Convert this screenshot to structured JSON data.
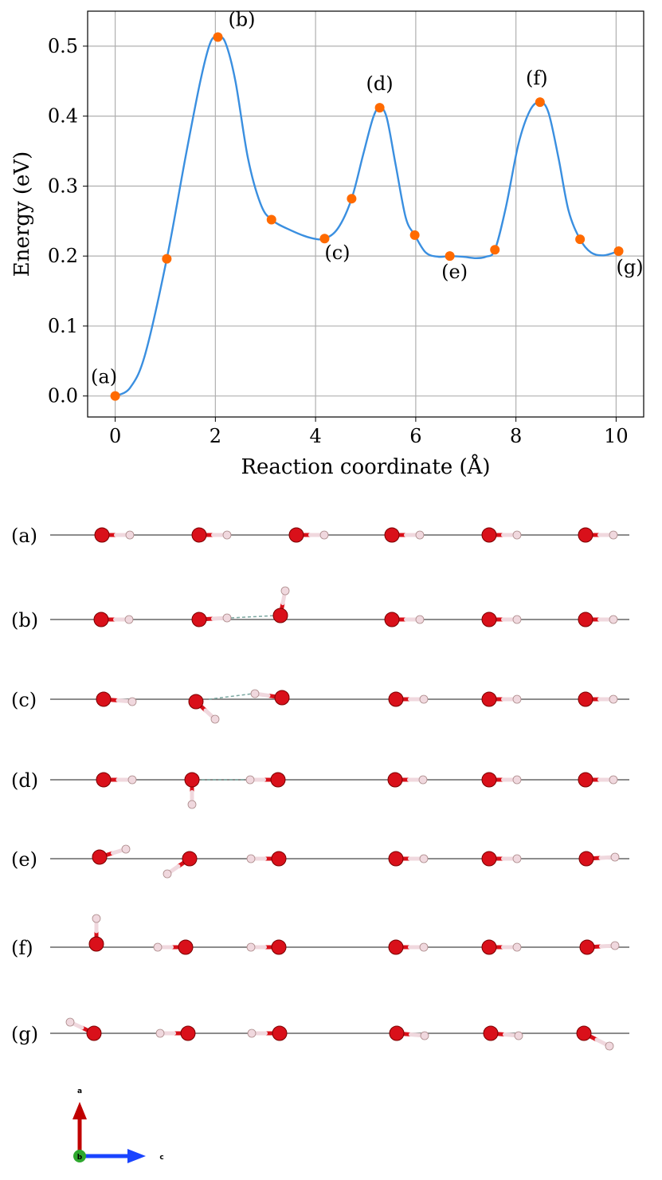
{
  "chart_data": {
    "type": "line",
    "xlabel": "Reaction coordinate (Å)",
    "ylabel": "Energy (eV)",
    "xlim": [
      -0.55,
      10.55
    ],
    "ylim": [
      -0.03,
      0.55
    ],
    "xticks": [
      0,
      2,
      4,
      6,
      8,
      10
    ],
    "yticks": [
      0.0,
      0.1,
      0.2,
      0.3,
      0.4,
      0.5
    ],
    "xtick_labels": [
      "0",
      "2",
      "4",
      "6",
      "8",
      "10"
    ],
    "ytick_labels": [
      "0.0",
      "0.1",
      "0.2",
      "0.3",
      "0.4",
      "0.5"
    ],
    "grid": true,
    "line_color": "#3a8fe0",
    "point_color": "#ff6a00",
    "points": [
      {
        "x": 0.0,
        "y": 0.0
      },
      {
        "x": 1.03,
        "y": 0.196
      },
      {
        "x": 2.05,
        "y": 0.513
      },
      {
        "x": 3.12,
        "y": 0.252
      },
      {
        "x": 4.18,
        "y": 0.225
      },
      {
        "x": 4.72,
        "y": 0.282
      },
      {
        "x": 5.28,
        "y": 0.412
      },
      {
        "x": 5.98,
        "y": 0.23
      },
      {
        "x": 6.68,
        "y": 0.2
      },
      {
        "x": 7.58,
        "y": 0.209
      },
      {
        "x": 8.48,
        "y": 0.42
      },
      {
        "x": 9.28,
        "y": 0.224
      },
      {
        "x": 10.05,
        "y": 0.207
      }
    ],
    "curve": [
      [
        0.0,
        0.0
      ],
      [
        0.3,
        0.012
      ],
      [
        0.6,
        0.06
      ],
      [
        1.03,
        0.196
      ],
      [
        1.4,
        0.34
      ],
      [
        1.7,
        0.45
      ],
      [
        1.9,
        0.505
      ],
      [
        2.05,
        0.513
      ],
      [
        2.2,
        0.505
      ],
      [
        2.4,
        0.45
      ],
      [
        2.65,
        0.34
      ],
      [
        2.9,
        0.275
      ],
      [
        3.12,
        0.252
      ],
      [
        3.5,
        0.237
      ],
      [
        3.9,
        0.226
      ],
      [
        4.18,
        0.225
      ],
      [
        4.45,
        0.24
      ],
      [
        4.72,
        0.282
      ],
      [
        4.95,
        0.345
      ],
      [
        5.15,
        0.398
      ],
      [
        5.28,
        0.412
      ],
      [
        5.42,
        0.398
      ],
      [
        5.6,
        0.33
      ],
      [
        5.8,
        0.255
      ],
      [
        5.98,
        0.23
      ],
      [
        6.2,
        0.205
      ],
      [
        6.45,
        0.199
      ],
      [
        6.68,
        0.2
      ],
      [
        6.95,
        0.199
      ],
      [
        7.2,
        0.197
      ],
      [
        7.4,
        0.199
      ],
      [
        7.58,
        0.209
      ],
      [
        7.8,
        0.27
      ],
      [
        8.05,
        0.36
      ],
      [
        8.28,
        0.408
      ],
      [
        8.48,
        0.42
      ],
      [
        8.65,
        0.405
      ],
      [
        8.85,
        0.34
      ],
      [
        9.05,
        0.265
      ],
      [
        9.28,
        0.224
      ],
      [
        9.5,
        0.205
      ],
      [
        9.75,
        0.201
      ],
      [
        10.05,
        0.207
      ]
    ],
    "annotations": [
      {
        "text": "(a)",
        "x": 0.0,
        "y": 0.0
      },
      {
        "text": "(b)",
        "x": 2.05,
        "y": 0.513
      },
      {
        "text": "(c)",
        "x": 4.18,
        "y": 0.225
      },
      {
        "text": "(d)",
        "x": 5.28,
        "y": 0.412
      },
      {
        "text": "(e)",
        "x": 6.68,
        "y": 0.2
      },
      {
        "text": "(f)",
        "x": 8.48,
        "y": 0.42
      },
      {
        "text": "(g)",
        "x": 10.05,
        "y": 0.207
      }
    ]
  },
  "structures": {
    "row_labels": [
      "(a)",
      "(b)",
      "(c)",
      "(d)",
      "(e)",
      "(f)",
      "(g)"
    ],
    "oxygen_color": "#d9101a",
    "hydrogen_color": "#f0d8de",
    "hbond_color": "#7aa7a0"
  },
  "axes_indicator": {
    "a_label": "a",
    "b_label": "b",
    "c_label": "c",
    "a_color": "#c00000",
    "b_color": "#2ea82e",
    "c_color": "#1a44ff"
  }
}
